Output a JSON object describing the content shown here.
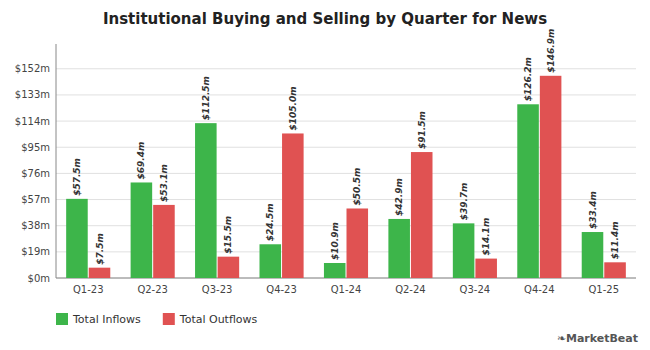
{
  "chart_data": {
    "type": "bar",
    "title": "Institutional Buying and Selling by Quarter for News",
    "categories": [
      "Q1-23",
      "Q2-23",
      "Q3-23",
      "Q4-23",
      "Q1-24",
      "Q2-24",
      "Q3-24",
      "Q4-24",
      "Q1-25"
    ],
    "series": [
      {
        "name": "Total Inflows",
        "color": "#3db54a",
        "values": [
          57.5,
          69.4,
          112.5,
          24.5,
          10.9,
          42.9,
          39.7,
          126.2,
          33.4
        ],
        "value_labels": [
          "$57.5m",
          "$69.4m",
          "$112.5m",
          "$24.5m",
          "$10.9m",
          "$42.9m",
          "$39.7m",
          "$126.2m",
          "$33.4m"
        ]
      },
      {
        "name": "Total Outflows",
        "color": "#e05252",
        "values": [
          7.5,
          53.1,
          15.5,
          105.0,
          50.5,
          91.5,
          14.1,
          146.9,
          11.4
        ],
        "value_labels": [
          "$7.5m",
          "$53.1m",
          "$15.5m",
          "$105.0m",
          "$50.5m",
          "$91.5m",
          "$14.1m",
          "$146.9m",
          "$11.4m"
        ]
      }
    ],
    "ylim": [
      0,
      170
    ],
    "yticks": [
      {
        "value": 0,
        "label": "$0m"
      },
      {
        "value": 19,
        "label": "$19m"
      },
      {
        "value": 38,
        "label": "$38m"
      },
      {
        "value": 57,
        "label": "$57m"
      },
      {
        "value": 76,
        "label": "$76m"
      },
      {
        "value": 95,
        "label": "$95m"
      },
      {
        "value": 114,
        "label": "$114m"
      },
      {
        "value": 133,
        "label": "$133m"
      },
      {
        "value": 152,
        "label": "$152m"
      }
    ],
    "grid": true,
    "data_labels": true,
    "legend": "lower left",
    "annotations": [
      "❧MarketBeat"
    ]
  }
}
